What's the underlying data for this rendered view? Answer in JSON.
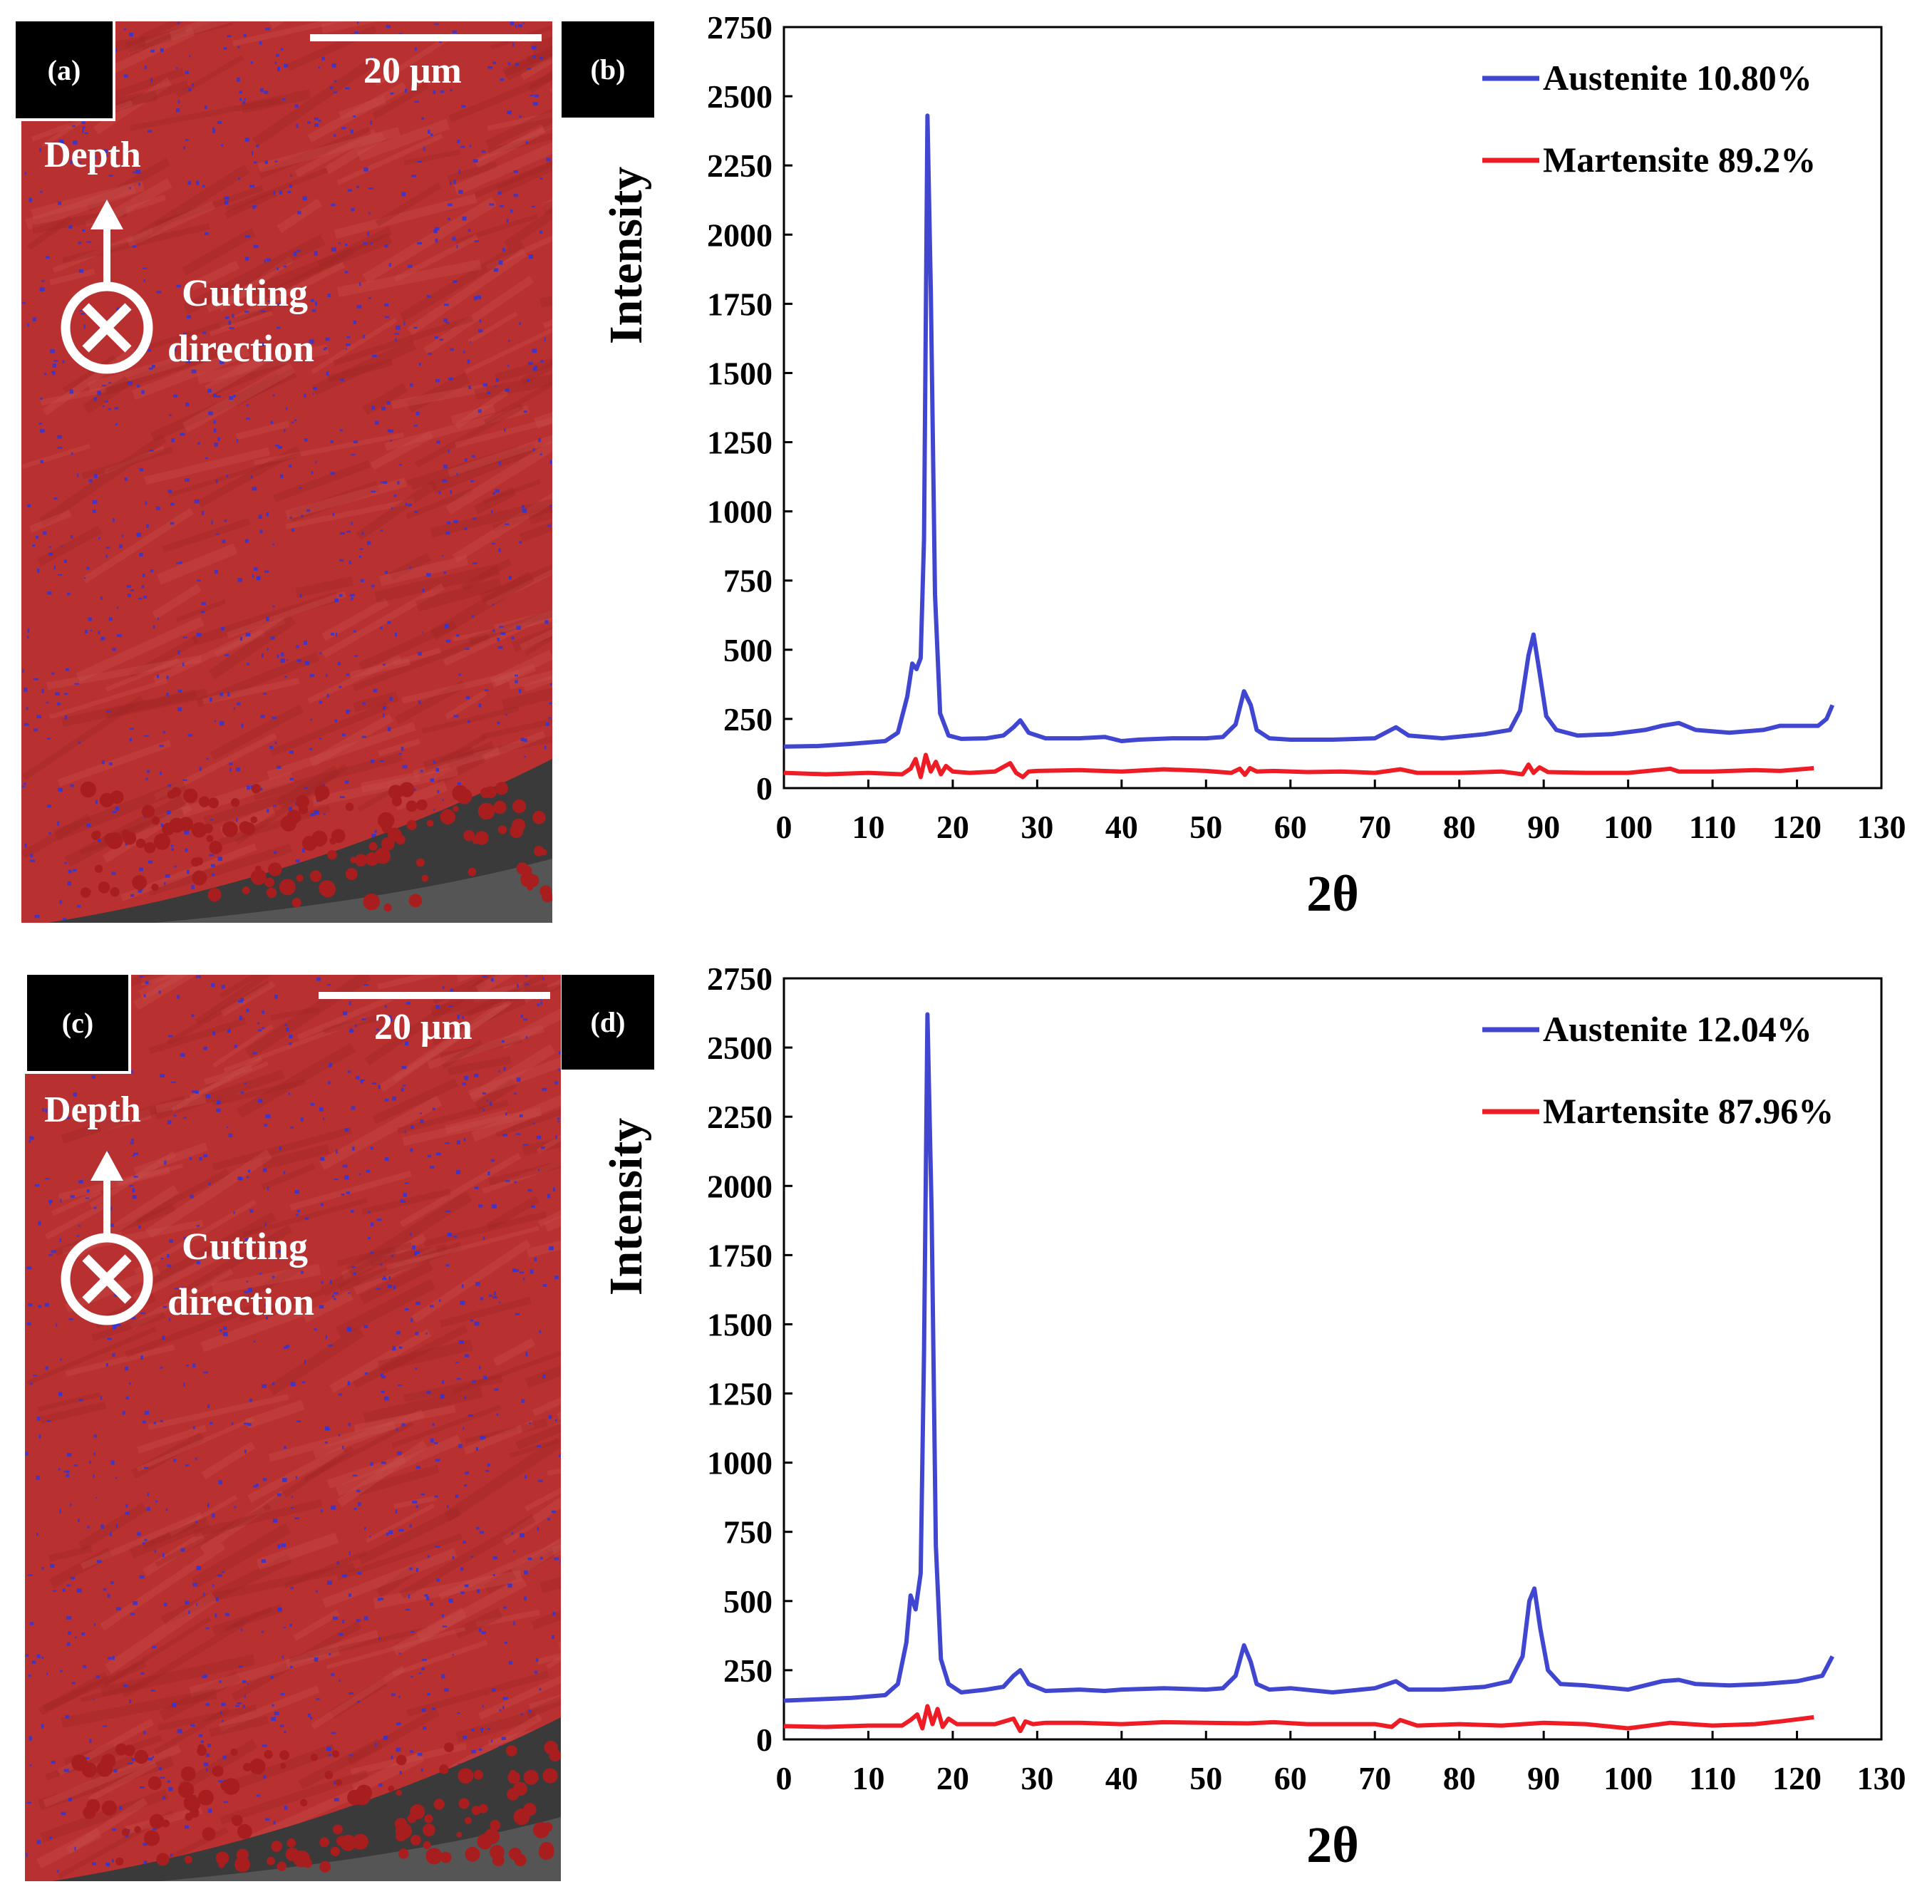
{
  "colors": {
    "austenite": "#4046d0",
    "martensite": "#ee1c24",
    "map_red": "#b52a2a",
    "map_blue": "#2f35d8"
  },
  "panels": [
    {
      "id": "a",
      "tag": "(a)",
      "scale_label": "20 μm",
      "depth_label": "Depth",
      "cutting_line1": "Cutting",
      "cutting_line2": "direction"
    },
    {
      "id": "c",
      "tag": "(c)",
      "scale_label": "20 μm",
      "depth_label": "Depth",
      "cutting_line1": "Cutting",
      "cutting_line2": "direction"
    }
  ],
  "chart_data": [
    {
      "type": "line",
      "tag": "(b)",
      "xlabel": "2θ",
      "ylabel": "Intensity",
      "xlim": [
        0,
        130
      ],
      "ylim": [
        0,
        2750
      ],
      "xticks": [
        0,
        10,
        20,
        30,
        40,
        50,
        60,
        70,
        80,
        90,
        100,
        110,
        120,
        130
      ],
      "yticks": [
        0,
        250,
        500,
        750,
        1000,
        1250,
        1500,
        1750,
        2000,
        2250,
        2500,
        2750
      ],
      "legend_position": "top-right",
      "series": [
        {
          "name": "Austenite 10.80%",
          "color": "#4046d0",
          "x": [
            0,
            4,
            8,
            12,
            13.5,
            14.6,
            15.2,
            15.7,
            16.2,
            16.6,
            17.0,
            17.4,
            17.9,
            18.5,
            19.5,
            21,
            24,
            26,
            27.2,
            28,
            29,
            31,
            35,
            38,
            40,
            42,
            46,
            50,
            52,
            53.5,
            54.5,
            55.3,
            56,
            57.5,
            60,
            65,
            70,
            72.5,
            74,
            78,
            83,
            86,
            87.2,
            88.2,
            88.8,
            89.5,
            90.3,
            91.5,
            94,
            98,
            102,
            104,
            106,
            108,
            112,
            116,
            118,
            121,
            122.5,
            123.5,
            124.2
          ],
          "y": [
            150,
            152,
            160,
            170,
            200,
            330,
            450,
            430,
            470,
            900,
            2430,
            1800,
            700,
            270,
            190,
            178,
            180,
            190,
            220,
            245,
            200,
            180,
            180,
            185,
            170,
            175,
            180,
            180,
            185,
            230,
            350,
            300,
            210,
            180,
            175,
            175,
            180,
            220,
            190,
            180,
            195,
            210,
            280,
            480,
            555,
            420,
            260,
            210,
            190,
            195,
            210,
            225,
            235,
            210,
            200,
            210,
            225,
            225,
            225,
            250,
            300
          ]
        },
        {
          "name": "Martensite 89.2%",
          "color": "#ee1c24",
          "x": [
            0,
            5,
            10,
            14,
            15,
            15.6,
            16.2,
            16.8,
            17.4,
            18,
            18.6,
            19.2,
            20,
            22,
            25,
            26.8,
            27.5,
            28.3,
            29,
            30,
            35,
            40,
            45,
            50,
            53,
            54,
            54.6,
            55.2,
            56,
            58,
            62,
            66,
            70,
            73,
            75,
            80,
            85,
            87.5,
            88.2,
            88.8,
            89.5,
            90.5,
            95,
            100,
            105,
            106,
            110,
            115,
            118,
            122
          ],
          "y": [
            55,
            50,
            55,
            50,
            70,
            105,
            40,
            120,
            60,
            95,
            50,
            80,
            60,
            55,
            60,
            90,
            55,
            40,
            60,
            62,
            65,
            60,
            68,
            62,
            55,
            70,
            48,
            72,
            60,
            62,
            58,
            60,
            55,
            68,
            55,
            55,
            60,
            50,
            85,
            55,
            75,
            58,
            55,
            55,
            70,
            60,
            60,
            65,
            62,
            72
          ]
        }
      ]
    },
    {
      "type": "line",
      "tag": "(d)",
      "xlabel": "2θ",
      "ylabel": "Intensity",
      "xlim": [
        0,
        130
      ],
      "ylim": [
        0,
        2750
      ],
      "xticks": [
        0,
        10,
        20,
        30,
        40,
        50,
        60,
        70,
        80,
        90,
        100,
        110,
        120,
        130
      ],
      "yticks": [
        0,
        250,
        500,
        750,
        1000,
        1250,
        1500,
        1750,
        2000,
        2250,
        2500,
        2750
      ],
      "legend_position": "top-right",
      "series": [
        {
          "name": "Austenite 12.04%",
          "color": "#4046d0",
          "x": [
            0,
            4,
            8,
            12,
            13.5,
            14.5,
            15.0,
            15.6,
            16.2,
            16.6,
            17.0,
            17.5,
            18.0,
            18.6,
            19.5,
            21,
            24,
            26,
            27.2,
            28,
            29,
            31,
            35,
            38,
            40,
            45,
            50,
            52,
            53.5,
            54.5,
            55.3,
            56,
            57.5,
            60,
            65,
            70,
            72.5,
            74,
            78,
            83,
            86,
            87.5,
            88.3,
            88.9,
            89.6,
            90.5,
            92,
            95,
            100,
            104,
            106,
            108,
            112,
            116,
            120,
            123,
            124.2
          ],
          "y": [
            140,
            145,
            150,
            160,
            200,
            350,
            520,
            470,
            600,
            1400,
            2620,
            1900,
            700,
            290,
            200,
            170,
            180,
            190,
            230,
            250,
            200,
            175,
            180,
            175,
            180,
            185,
            180,
            185,
            230,
            340,
            280,
            200,
            180,
            185,
            170,
            185,
            210,
            180,
            180,
            190,
            210,
            300,
            500,
            545,
            400,
            250,
            200,
            195,
            180,
            210,
            215,
            200,
            195,
            200,
            210,
            230,
            300
          ]
        },
        {
          "name": "Martensite 87.96%",
          "color": "#ee1c24",
          "x": [
            0,
            5,
            10,
            14,
            15,
            15.8,
            16.4,
            17.0,
            17.6,
            18.2,
            18.8,
            19.5,
            20.5,
            22,
            25,
            27.2,
            28,
            28.6,
            29.5,
            31,
            35,
            40,
            45,
            50,
            55,
            58,
            62,
            66,
            70,
            72,
            73,
            75,
            80,
            85,
            90,
            95,
            100,
            105,
            110,
            115,
            118,
            122
          ],
          "y": [
            48,
            45,
            50,
            50,
            70,
            90,
            40,
            120,
            55,
            110,
            45,
            75,
            55,
            55,
            55,
            75,
            30,
            65,
            55,
            60,
            60,
            55,
            62,
            60,
            58,
            62,
            55,
            55,
            55,
            45,
            70,
            50,
            55,
            50,
            60,
            55,
            40,
            60,
            50,
            55,
            65,
            80
          ]
        }
      ]
    }
  ]
}
